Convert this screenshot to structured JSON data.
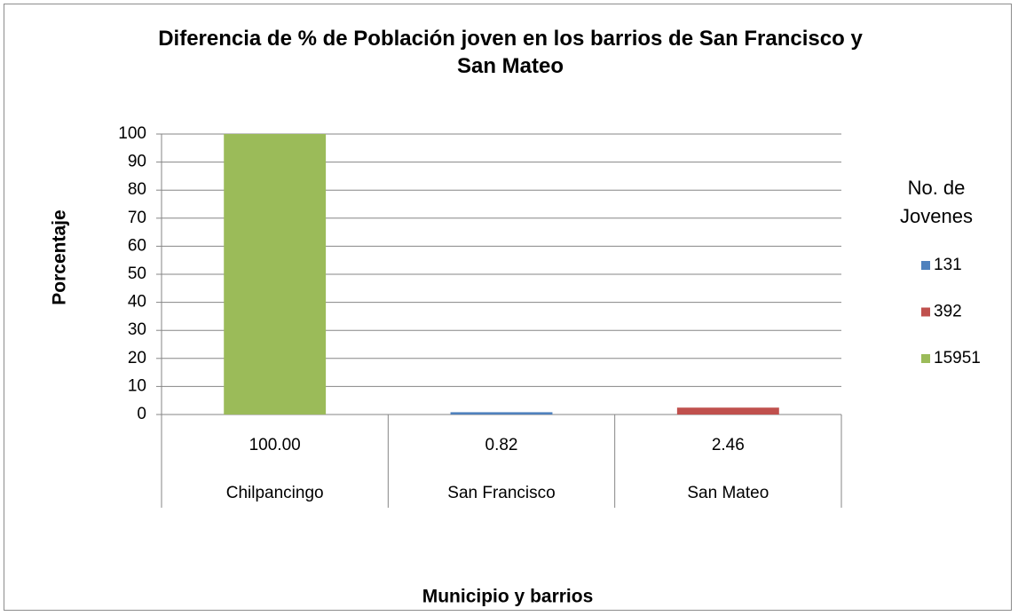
{
  "chart_data": {
    "type": "bar",
    "title": "Diferencia de %  de Población joven en los barrios de San Francisco y San Mateo",
    "x_label": "Municipio y barrios",
    "y_label": "Porcentaje",
    "legend_title_lines": [
      "No. de",
      "Jovenes"
    ],
    "legend_position": "right",
    "categories": [
      "Chilpancingo",
      "San Francisco",
      "San Mateo"
    ],
    "series": [
      {
        "name": "131",
        "color": "#4f81bd",
        "values": [
          null,
          0.82,
          null
        ],
        "value_labels": [
          null,
          "0.82",
          null
        ]
      },
      {
        "name": "392",
        "color": "#c0504d",
        "values": [
          null,
          null,
          2.46
        ],
        "value_labels": [
          null,
          null,
          "2.46"
        ]
      },
      {
        "name": "15951",
        "color": "#9bbb59",
        "values": [
          100,
          null,
          null
        ],
        "value_labels": [
          "100.00",
          null,
          null
        ]
      }
    ],
    "ylim": [
      0,
      100
    ],
    "yticks": [
      0,
      10,
      20,
      30,
      40,
      50,
      60,
      70,
      80,
      90,
      100
    ],
    "grid": true
  }
}
